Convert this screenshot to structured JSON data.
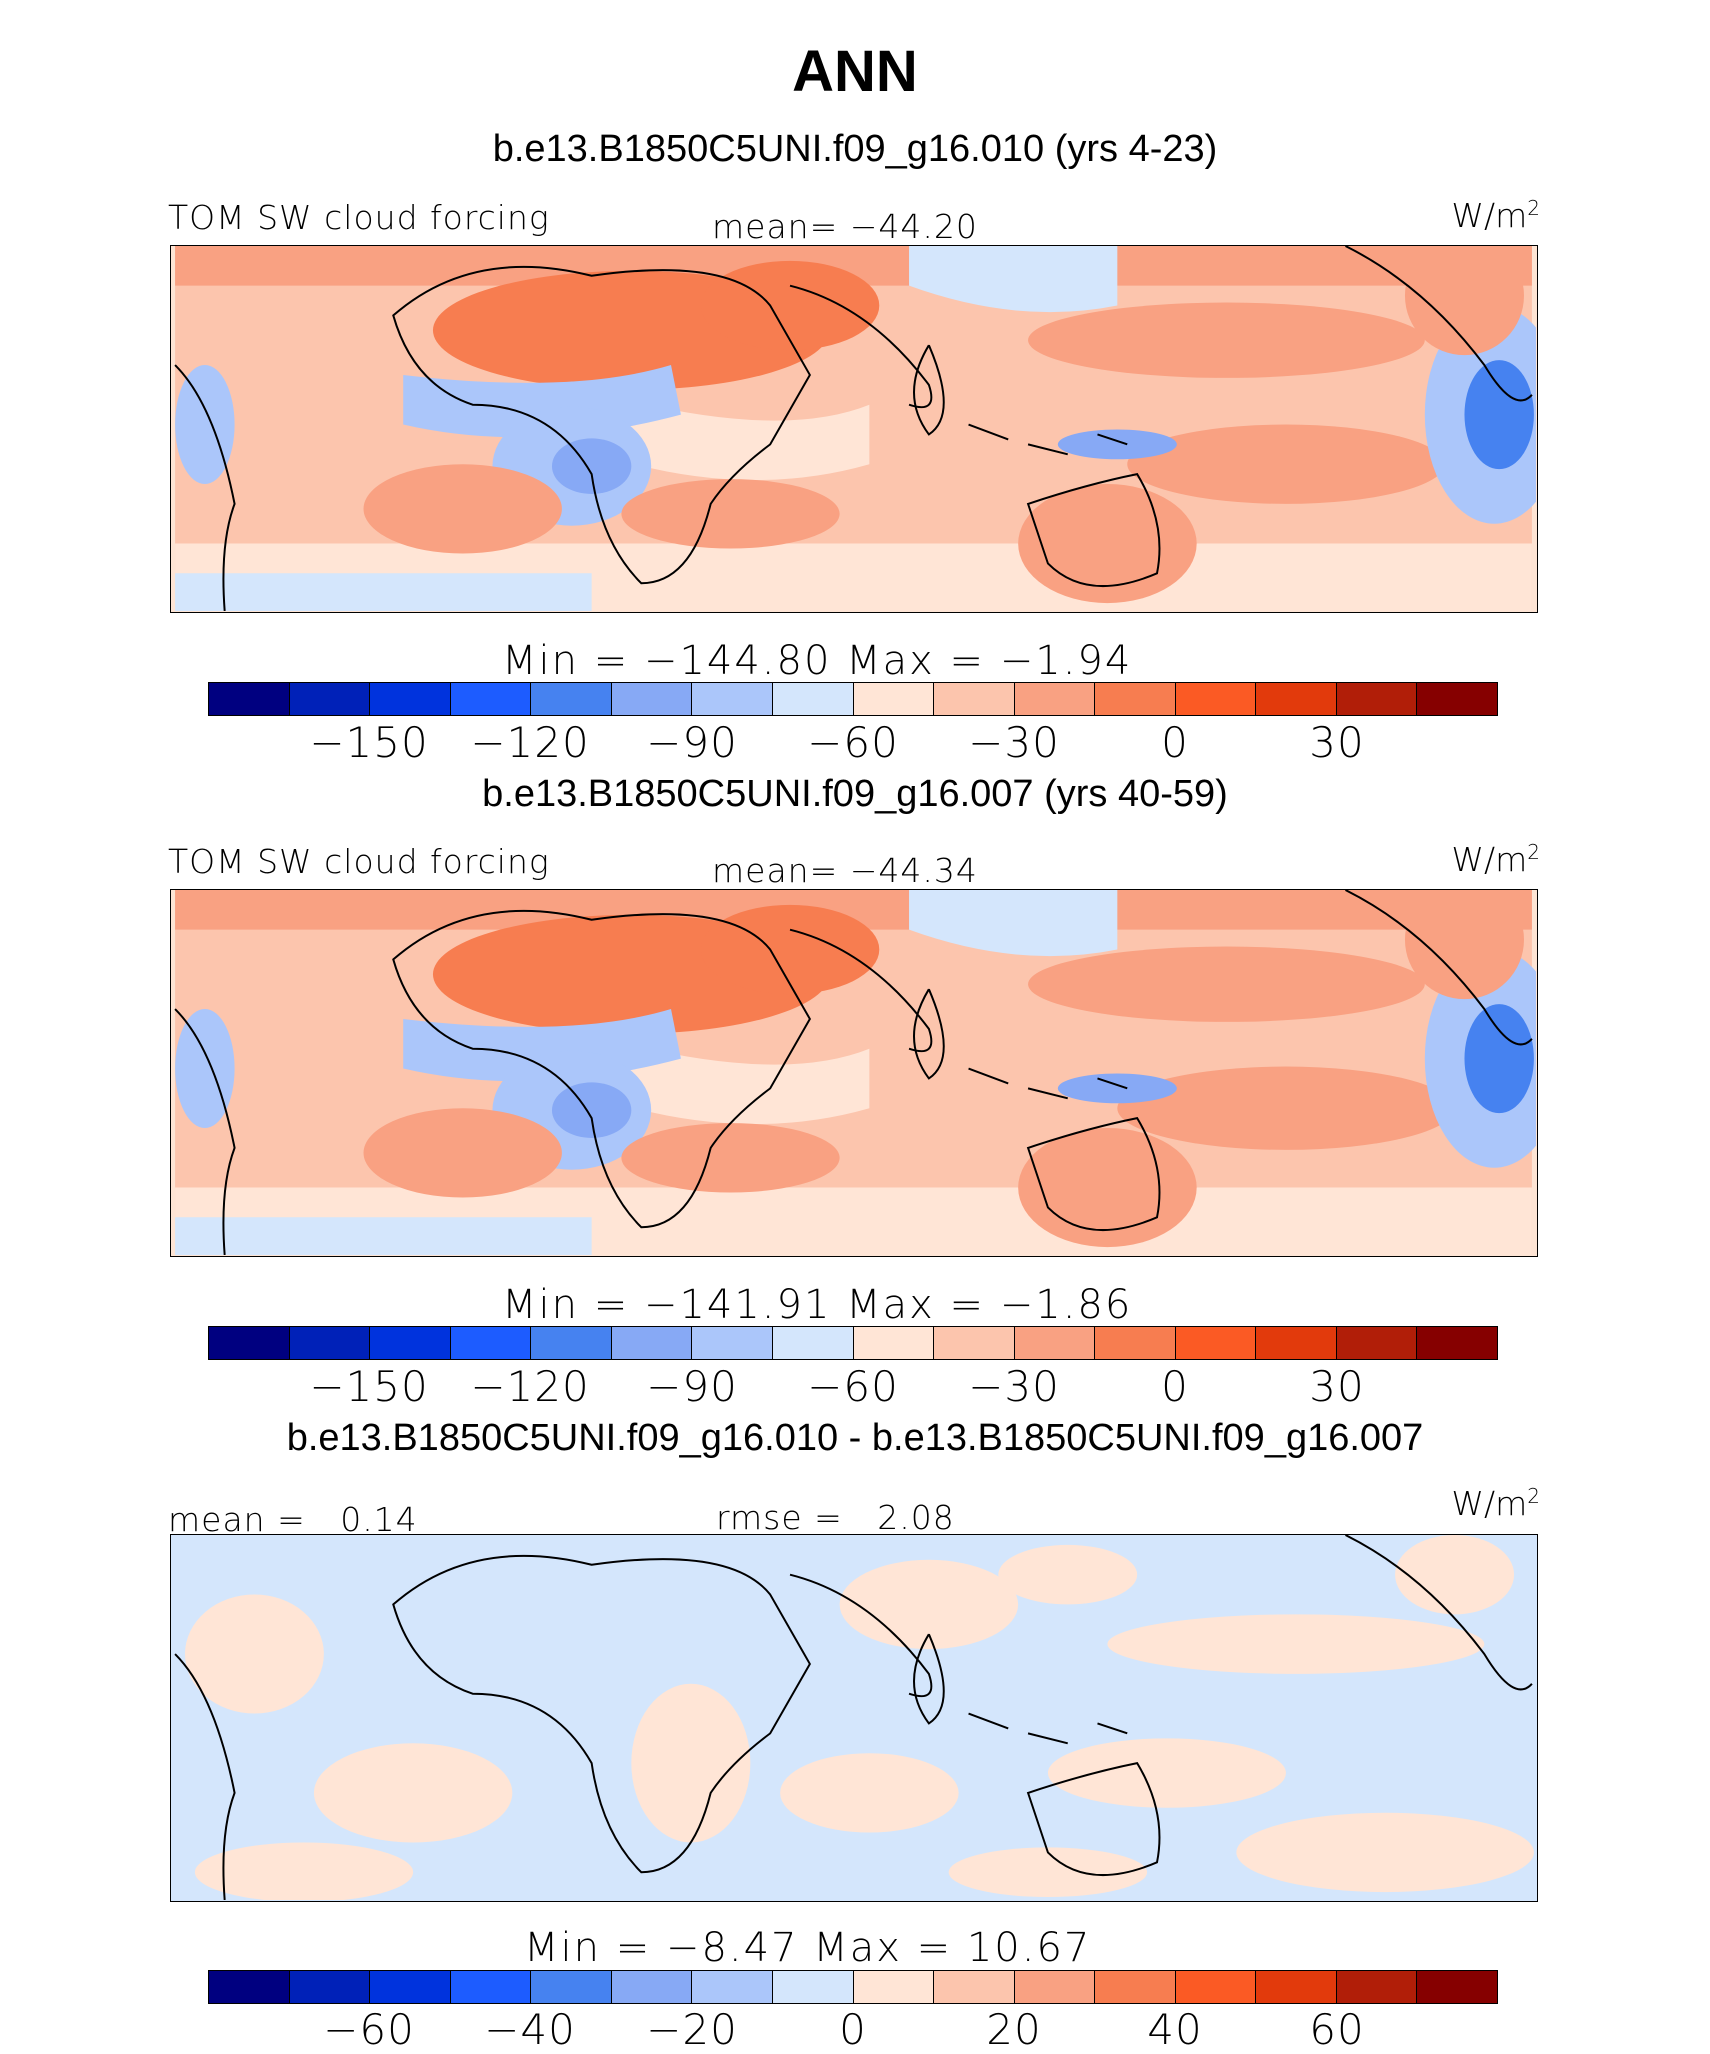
{
  "title": "ANN",
  "colors": {
    "palette": [
      "#000080",
      "#0021b8",
      "#0033dd",
      "#1d5cff",
      "#4682f0",
      "#87a9f5",
      "#abc6fa",
      "#d4e6fc",
      "#ffe5d6",
      "#fcc5ad",
      "#f9a182",
      "#f77d50",
      "#fb5a24",
      "#e23a0c",
      "#b11e08",
      "#860000"
    ],
    "coast": "#000000"
  },
  "panels": [
    {
      "case_title": "b.e13.B1850C5UNI.f09_g16.010 (yrs 4-23)",
      "left_label": "TOM SW cloud forcing",
      "center_label": "mean= −44.20",
      "units": "W/m",
      "units_sup": "2",
      "min_max": "Min = −144.80 Max = −1.94",
      "ticks": [
        "−150",
        "−120",
        "−90",
        "−60",
        "−30",
        "0",
        "30"
      ]
    },
    {
      "case_title": "b.e13.B1850C5UNI.f09_g16.007 (yrs 40-59)",
      "left_label": "TOM SW cloud forcing",
      "center_label": "mean= −44.34",
      "units": "W/m",
      "units_sup": "2",
      "min_max": "Min = −141.91 Max = −1.86",
      "ticks": [
        "−150",
        "−120",
        "−90",
        "−60",
        "−30",
        "0",
        "30"
      ]
    },
    {
      "case_title": "b.e13.B1850C5UNI.f09_g16.010 - b.e13.B1850C5UNI.f09_g16.007",
      "left_label": "mean =   0.14",
      "center_label": "rmse =   2.08",
      "units": "W/m",
      "units_sup": "2",
      "min_max": "Min = −8.47 Max = 10.67",
      "ticks": [
        "−60",
        "−40",
        "−20",
        "0",
        "20",
        "40",
        "60"
      ]
    }
  ]
}
